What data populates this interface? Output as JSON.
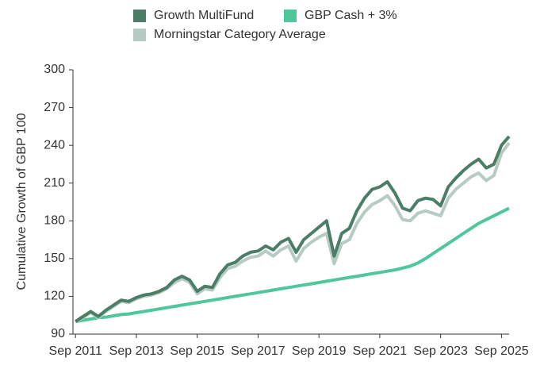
{
  "chart_data": {
    "type": "line",
    "ylabel": "Cumulative Growth of GBP 100",
    "legend": "top",
    "x": [
      "2011-09",
      "2011-12",
      "2012-03",
      "2012-06",
      "2012-09",
      "2012-12",
      "2013-03",
      "2013-06",
      "2013-09",
      "2013-12",
      "2014-03",
      "2014-06",
      "2014-09",
      "2014-12",
      "2015-03",
      "2015-06",
      "2015-09",
      "2015-12",
      "2016-03",
      "2016-06",
      "2016-09",
      "2016-12",
      "2017-03",
      "2017-06",
      "2017-09",
      "2017-12",
      "2018-03",
      "2018-06",
      "2018-09",
      "2018-12",
      "2019-03",
      "2019-06",
      "2019-09",
      "2019-12",
      "2020-03",
      "2020-06",
      "2020-09",
      "2020-12",
      "2021-03",
      "2021-06",
      "2021-09",
      "2021-12",
      "2022-03",
      "2022-06",
      "2022-09",
      "2022-12",
      "2023-03",
      "2023-06",
      "2023-09",
      "2023-12",
      "2024-03",
      "2024-06",
      "2024-09",
      "2024-12",
      "2025-03",
      "2025-06",
      "2025-09",
      "2025-12"
    ],
    "series": [
      {
        "name": "Growth MultiFund",
        "color": "#4b7d67",
        "values": [
          100,
          104,
          108,
          104,
          109,
          113,
          117,
          116,
          119,
          121,
          122,
          124,
          127,
          133,
          136,
          133,
          124,
          128,
          127,
          138,
          145,
          147,
          152,
          155,
          156,
          160,
          157,
          163,
          166,
          155,
          165,
          170,
          175,
          180,
          152,
          170,
          174,
          188,
          198,
          205,
          207,
          211,
          202,
          190,
          188,
          196,
          198,
          197,
          192,
          207,
          214,
          220,
          225,
          229,
          222,
          225,
          240,
          247
        ]
      },
      {
        "name": "GBP Cash + 3%",
        "color": "#4fc79b",
        "values": [
          100,
          101,
          102,
          103,
          103.5,
          104.5,
          105.5,
          106,
          107,
          108,
          109,
          110,
          111,
          112,
          113,
          114,
          115,
          116,
          117,
          118,
          119,
          120,
          121,
          122,
          123,
          124,
          125,
          126,
          127,
          128,
          129,
          130,
          131,
          132,
          133,
          134,
          135,
          136,
          137,
          138,
          139,
          140,
          141,
          142.5,
          144,
          146.5,
          150,
          154,
          158,
          162,
          166,
          170,
          174,
          178,
          181,
          184,
          187,
          190
        ]
      },
      {
        "name": "Morningstar Category Average",
        "color": "#b6cbc1",
        "values": [
          100,
          103,
          107,
          103,
          108,
          112,
          116,
          115,
          118,
          120,
          121,
          123,
          126,
          131,
          134,
          131,
          122,
          126,
          125,
          135,
          142,
          144,
          148,
          151,
          152,
          156,
          152,
          157,
          160,
          148,
          158,
          163,
          167,
          170,
          146,
          162,
          165,
          178,
          187,
          193,
          196,
          200,
          192,
          181,
          180,
          186,
          188,
          186,
          184,
          198,
          205,
          210,
          215,
          218,
          212,
          216,
          234,
          242
        ]
      }
    ],
    "xlim": [
      "2011-08",
      "2025-12"
    ],
    "xticks": [
      {
        "value": "2011-09",
        "label": "Sep 2011"
      },
      {
        "value": "2013-09",
        "label": "Sep 2013"
      },
      {
        "value": "2015-09",
        "label": "Sep 2015"
      },
      {
        "value": "2017-09",
        "label": "Sep 2017"
      },
      {
        "value": "2019-09",
        "label": "Sep 2019"
      },
      {
        "value": "2021-09",
        "label": "Sep 2021"
      },
      {
        "value": "2023-09",
        "label": "Sep 2023"
      },
      {
        "value": "2025-09",
        "label": "Sep 2025"
      }
    ],
    "ylim": [
      90,
      300
    ],
    "yticks": [
      90,
      120,
      150,
      180,
      210,
      240,
      270,
      300
    ],
    "grid": false
  }
}
